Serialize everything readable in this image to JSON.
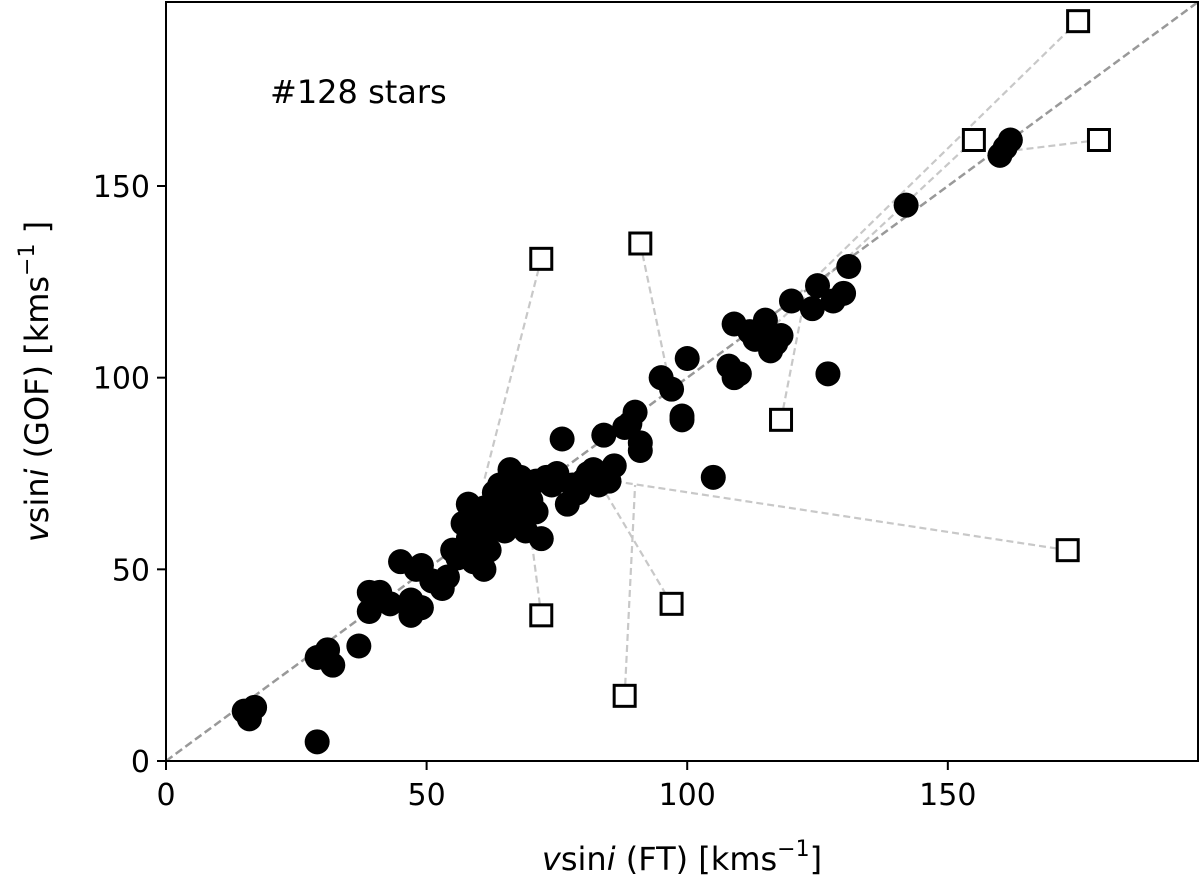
{
  "chart_data": {
    "type": "scatter",
    "title": "",
    "annotation": "#128 stars",
    "xlabel": {
      "var": "v",
      "func": "sin",
      "ital": "i",
      "rest": " (FT) [kms",
      "sup": "−1",
      "end": "]"
    },
    "ylabel": {
      "var": "v",
      "func": "sin",
      "ital": "i",
      "rest": " (GOF) [kms",
      "sup": "−1",
      "end": " ]"
    },
    "xlim": [
      0,
      198
    ],
    "ylim": [
      0,
      198
    ],
    "xticks": [
      0,
      50,
      100,
      150
    ],
    "yticks": [
      0,
      50,
      100,
      150
    ],
    "grid": false,
    "colors": {
      "points": "#000000",
      "diagonal": "#999999",
      "links": "#c8c8c8",
      "squares_edge": "#000000"
    },
    "diagonal": {
      "x": [
        0,
        198
      ],
      "y": [
        0,
        198
      ]
    },
    "points": [
      [
        15,
        13
      ],
      [
        16,
        11
      ],
      [
        17,
        14
      ],
      [
        29,
        5
      ],
      [
        29,
        27
      ],
      [
        31,
        29
      ],
      [
        32,
        25
      ],
      [
        37,
        30
      ],
      [
        39,
        39
      ],
      [
        39,
        44
      ],
      [
        41,
        44
      ],
      [
        43,
        41
      ],
      [
        45,
        52
      ],
      [
        47,
        38
      ],
      [
        47,
        42
      ],
      [
        48,
        50
      ],
      [
        49,
        51
      ],
      [
        49,
        40
      ],
      [
        51,
        47
      ],
      [
        53,
        45
      ],
      [
        54,
        48
      ],
      [
        55,
        55
      ],
      [
        56,
        53
      ],
      [
        57,
        62
      ],
      [
        58,
        58
      ],
      [
        58,
        67
      ],
      [
        59,
        60
      ],
      [
        59,
        52
      ],
      [
        60,
        56
      ],
      [
        60,
        64
      ],
      [
        61,
        50
      ],
      [
        61,
        58
      ],
      [
        61,
        66
      ],
      [
        62,
        62
      ],
      [
        62,
        55
      ],
      [
        63,
        61
      ],
      [
        63,
        70
      ],
      [
        64,
        66
      ],
      [
        64,
        72
      ],
      [
        65,
        60
      ],
      [
        65,
        68
      ],
      [
        66,
        76
      ],
      [
        66,
        64
      ],
      [
        67,
        72
      ],
      [
        67,
        62
      ],
      [
        68,
        74
      ],
      [
        68,
        67
      ],
      [
        69,
        70
      ],
      [
        69,
        60
      ],
      [
        70,
        68
      ],
      [
        71,
        65
      ],
      [
        71,
        73
      ],
      [
        72,
        58
      ],
      [
        73,
        74
      ],
      [
        74,
        72
      ],
      [
        75,
        75
      ],
      [
        76,
        84
      ],
      [
        77,
        67
      ],
      [
        78,
        72
      ],
      [
        79,
        70
      ],
      [
        80,
        73
      ],
      [
        81,
        75
      ],
      [
        82,
        76
      ],
      [
        83,
        72
      ],
      [
        84,
        85
      ],
      [
        85,
        73
      ],
      [
        86,
        77
      ],
      [
        88,
        87
      ],
      [
        89,
        88
      ],
      [
        90,
        91
      ],
      [
        91,
        83
      ],
      [
        91,
        81
      ],
      [
        95,
        100
      ],
      [
        97,
        97
      ],
      [
        99,
        89
      ],
      [
        99,
        90
      ],
      [
        100,
        105
      ],
      [
        105,
        74
      ],
      [
        108,
        103
      ],
      [
        109,
        100
      ],
      [
        109,
        114
      ],
      [
        110,
        101
      ],
      [
        112,
        112
      ],
      [
        113,
        110
      ],
      [
        114,
        111
      ],
      [
        115,
        115
      ],
      [
        116,
        107
      ],
      [
        117,
        109
      ],
      [
        118,
        111
      ],
      [
        120,
        120
      ],
      [
        124,
        118
      ],
      [
        125,
        124
      ],
      [
        127,
        101
      ],
      [
        128,
        120
      ],
      [
        130,
        122
      ],
      [
        131,
        129
      ],
      [
        142,
        145
      ],
      [
        160,
        158
      ],
      [
        161,
        160
      ],
      [
        162,
        162
      ]
    ],
    "links": [
      {
        "from": [
          72,
          131
        ],
        "to": [
          61,
          73
        ]
      },
      {
        "from": [
          91,
          135
        ],
        "to": [
          97,
          96
        ]
      },
      {
        "from": [
          118,
          89
        ],
        "to": [
          122,
          117
        ]
      },
      {
        "from": [
          72,
          38
        ],
        "to": [
          70,
          59
        ]
      },
      {
        "from": [
          88,
          17
        ],
        "to": [
          90,
          72
        ]
      },
      {
        "from": [
          97,
          41
        ],
        "to": [
          83,
          73
        ]
      },
      {
        "from": [
          173,
          55
        ],
        "to": [
          86,
          73
        ]
      },
      {
        "from": [
          175,
          193
        ],
        "to": [
          120,
          120
        ]
      },
      {
        "from": [
          155,
          162
        ],
        "to": [
          117,
          114
        ]
      },
      {
        "from": [
          179,
          162
        ],
        "to": [
          161,
          159
        ]
      }
    ],
    "squares": [
      [
        72,
        131
      ],
      [
        91,
        135
      ],
      [
        118,
        89
      ],
      [
        72,
        38
      ],
      [
        88,
        17
      ],
      [
        97,
        41
      ],
      [
        173,
        55
      ],
      [
        175,
        193
      ],
      [
        155,
        162
      ],
      [
        179,
        162
      ]
    ]
  }
}
